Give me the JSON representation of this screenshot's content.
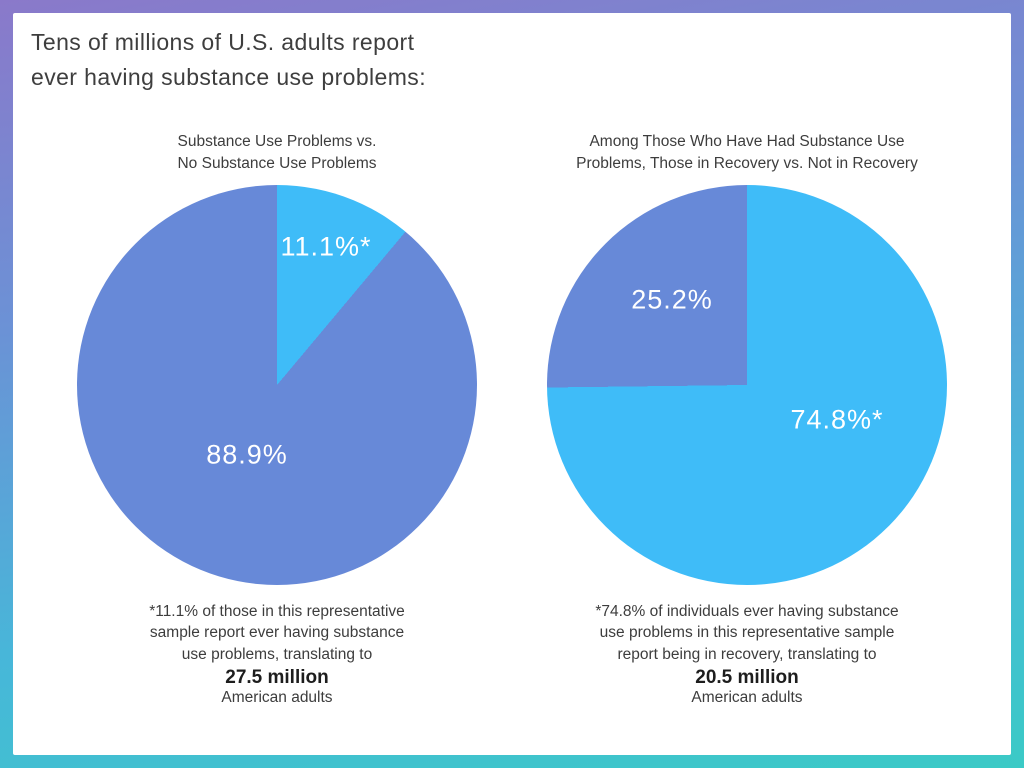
{
  "page": {
    "title": "Tens of millions of U.S. adults report\never having substance use problems:"
  },
  "colors": {
    "light_blue": "#3fbcf8",
    "periwinkle": "#6789d8",
    "frame_gradient_top": "#8a79ca",
    "frame_gradient_bottom": "#3bcac6",
    "text": "#3d3d3d"
  },
  "chart_data": [
    {
      "type": "pie",
      "title": "Substance Use Problems vs.\nNo Substance Use Problems",
      "legend_position": "none",
      "slices": [
        {
          "name": "substance-use-problems",
          "label": "11.1%*",
          "value": 11.1,
          "color": "#3fbcf8"
        },
        {
          "name": "no-substance-use-problems",
          "label": "88.9%",
          "value": 88.9,
          "color": "#6789d8"
        }
      ],
      "footnote": "*11.1% of those in this representative\nsample report ever having substance\nuse problems, translating to",
      "footnote_value": "27.5 million",
      "footnote_suffix": "American adults"
    },
    {
      "type": "pie",
      "title": "Among Those Who Have Had Substance Use\nProblems, Those in Recovery vs. Not in Recovery",
      "legend_position": "none",
      "slices": [
        {
          "name": "in-recovery",
          "label": "74.8%*",
          "value": 74.8,
          "color": "#3fbcf8"
        },
        {
          "name": "not-in-recovery",
          "label": "25.2%",
          "value": 25.2,
          "color": "#6789d8"
        }
      ],
      "footnote": "*74.8% of individuals ever having substance\nuse problems in this representative sample\nreport being in recovery, translating to",
      "footnote_value": "20.5 million",
      "footnote_suffix": "American adults"
    }
  ]
}
